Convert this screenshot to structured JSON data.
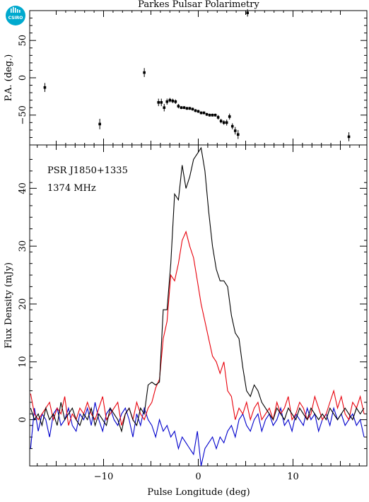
{
  "logo": {
    "text": "CSIRO",
    "color": "#00a9ce"
  },
  "chart_data": [
    {
      "type": "scatter",
      "title": "Parkes Pulsar Polarimetry",
      "xlabel": "",
      "ylabel": "P.A. (deg.)",
      "xlim": [
        -17.8,
        17.8
      ],
      "ylim": [
        -90,
        90
      ],
      "yticks": [
        50,
        0,
        -50
      ],
      "points": [
        {
          "x": -16.2,
          "y": -13,
          "err": 6
        },
        {
          "x": -10.4,
          "y": -62,
          "err": 7
        },
        {
          "x": -5.7,
          "y": 7,
          "err": 6
        },
        {
          "x": -4.2,
          "y": -33,
          "err": 5
        },
        {
          "x": -3.9,
          "y": -33,
          "err": 5
        },
        {
          "x": -3.6,
          "y": -40,
          "err": 5
        },
        {
          "x": -3.3,
          "y": -32,
          "err": 4
        },
        {
          "x": -3.0,
          "y": -30,
          "err": 3
        },
        {
          "x": -2.7,
          "y": -31,
          "err": 3
        },
        {
          "x": -2.4,
          "y": -32,
          "err": 3
        },
        {
          "x": -2.1,
          "y": -38,
          "err": 3
        },
        {
          "x": -1.8,
          "y": -40,
          "err": 2
        },
        {
          "x": -1.5,
          "y": -40,
          "err": 2
        },
        {
          "x": -1.2,
          "y": -41,
          "err": 2
        },
        {
          "x": -0.9,
          "y": -41,
          "err": 2
        },
        {
          "x": -0.6,
          "y": -42,
          "err": 2
        },
        {
          "x": -0.3,
          "y": -44,
          "err": 2
        },
        {
          "x": 0.0,
          "y": -45,
          "err": 2
        },
        {
          "x": 0.3,
          "y": -47,
          "err": 2
        },
        {
          "x": 0.6,
          "y": -47,
          "err": 2
        },
        {
          "x": 0.9,
          "y": -49,
          "err": 2
        },
        {
          "x": 1.2,
          "y": -50,
          "err": 2
        },
        {
          "x": 1.5,
          "y": -50,
          "err": 2
        },
        {
          "x": 1.8,
          "y": -50,
          "err": 2
        },
        {
          "x": 2.1,
          "y": -53,
          "err": 3
        },
        {
          "x": 2.4,
          "y": -58,
          "err": 3
        },
        {
          "x": 2.7,
          "y": -60,
          "err": 3
        },
        {
          "x": 3.0,
          "y": -60,
          "err": 4
        },
        {
          "x": 3.3,
          "y": -52,
          "err": 4
        },
        {
          "x": 3.6,
          "y": -65,
          "err": 4
        },
        {
          "x": 3.9,
          "y": -71,
          "err": 5
        },
        {
          "x": 4.2,
          "y": -76,
          "err": 6
        },
        {
          "x": 5.2,
          "y": 87,
          "err": 5
        },
        {
          "x": 15.9,
          "y": -79,
          "err": 6
        }
      ]
    },
    {
      "type": "line",
      "title": "",
      "xlabel": "Pulse Longitude (deg)",
      "ylabel": "Flux Density (mJy)",
      "xlim": [
        -17.8,
        17.8
      ],
      "ylim": [
        -8,
        47.5
      ],
      "xticks": [
        -10,
        0,
        10
      ],
      "yticks": [
        0,
        10,
        20,
        30,
        40
      ],
      "annotations": [
        "PSR J1850+1335",
        "1374 MHz"
      ],
      "series": [
        {
          "color": "#000000",
          "x": [
            -17.7,
            -17.3,
            -16.9,
            -16.5,
            -16.1,
            -15.7,
            -15.3,
            -14.9,
            -14.5,
            -14.1,
            -13.7,
            -13.3,
            -12.9,
            -12.5,
            -12.1,
            -11.7,
            -11.3,
            -10.9,
            -10.5,
            -10.1,
            -9.7,
            -9.3,
            -8.9,
            -8.5,
            -8.1,
            -7.7,
            -7.3,
            -6.9,
            -6.5,
            -6.1,
            -5.7,
            -5.3,
            -4.9,
            -4.5,
            -4.1,
            -3.7,
            -3.3,
            -2.9,
            -2.5,
            -2.1,
            -1.7,
            -1.3,
            -0.9,
            -0.5,
            -0.1,
            0.3,
            0.7,
            1.1,
            1.5,
            1.9,
            2.3,
            2.7,
            3.1,
            3.5,
            3.9,
            4.3,
            4.7,
            5.1,
            5.5,
            5.9,
            6.3,
            6.7,
            7.1,
            7.5,
            7.9,
            8.3,
            8.7,
            9.1,
            9.5,
            9.9,
            10.3,
            10.7,
            11.1,
            11.5,
            11.9,
            12.3,
            12.7,
            13.1,
            13.5,
            13.9,
            14.3,
            14.7,
            15.1,
            15.5,
            15.9,
            16.3,
            16.7,
            17.1,
            17.5
          ],
          "y": [
            2,
            0,
            1,
            -1,
            2,
            0,
            1,
            -1,
            3,
            0,
            1,
            2,
            0,
            -1,
            1,
            0,
            2,
            -1,
            1,
            0,
            -1,
            2,
            1,
            0,
            -2,
            1,
            2,
            0,
            -1,
            2,
            1,
            6,
            6.5,
            6,
            6.5,
            19,
            19,
            27,
            39,
            38,
            44,
            40,
            42,
            45,
            46,
            47,
            43,
            36,
            30,
            26,
            24,
            24,
            23,
            18,
            15,
            14,
            9,
            5,
            4,
            6,
            5,
            3,
            2,
            1,
            0,
            2,
            1,
            0,
            2,
            1,
            0,
            2,
            1,
            0,
            2,
            1,
            0,
            1,
            0,
            2,
            1,
            0,
            1,
            2,
            1,
            0,
            2,
            1,
            2
          ]
        },
        {
          "color": "#e8000b",
          "x": [
            -17.7,
            -17.3,
            -16.9,
            -16.5,
            -16.1,
            -15.7,
            -15.3,
            -14.9,
            -14.5,
            -14.1,
            -13.7,
            -13.3,
            -12.9,
            -12.5,
            -12.1,
            -11.7,
            -11.3,
            -10.9,
            -10.5,
            -10.1,
            -9.7,
            -9.3,
            -8.9,
            -8.5,
            -8.1,
            -7.7,
            -7.3,
            -6.9,
            -6.5,
            -6.1,
            -5.7,
            -5.3,
            -4.9,
            -4.5,
            -4.1,
            -3.7,
            -3.3,
            -2.9,
            -2.5,
            -2.1,
            -1.7,
            -1.3,
            -0.9,
            -0.5,
            -0.1,
            0.3,
            0.7,
            1.1,
            1.5,
            1.9,
            2.3,
            2.7,
            3.1,
            3.5,
            3.9,
            4.3,
            4.7,
            5.1,
            5.5,
            5.9,
            6.3,
            6.7,
            7.1,
            7.5,
            7.9,
            8.3,
            8.7,
            9.1,
            9.5,
            9.9,
            10.3,
            10.7,
            11.1,
            11.5,
            11.9,
            12.3,
            12.7,
            13.1,
            13.5,
            13.9,
            14.3,
            14.7,
            15.1,
            15.5,
            15.9,
            16.3,
            16.7,
            17.1,
            17.5
          ],
          "y": [
            4.5,
            1,
            0,
            1,
            2,
            3,
            0,
            2,
            1,
            4,
            -1,
            1,
            0,
            2,
            1,
            3,
            1,
            0,
            2,
            4,
            0,
            1,
            2,
            3,
            -1,
            1,
            2,
            0,
            3,
            1,
            0,
            2,
            3,
            5.5,
            7,
            14,
            17,
            25,
            24,
            27,
            31,
            32.5,
            30,
            28,
            24,
            20,
            17,
            14,
            11,
            10,
            8,
            10,
            5,
            4,
            0,
            2,
            1,
            3,
            0,
            2,
            3,
            0,
            1,
            2,
            0,
            3,
            1,
            2,
            4,
            0,
            1,
            3,
            2,
            0,
            1,
            4,
            2,
            0,
            1,
            3,
            5,
            2,
            4,
            1,
            0,
            3,
            2,
            4,
            1
          ]
        },
        {
          "color": "#0000cc",
          "x": [
            -17.7,
            -17.3,
            -16.9,
            -16.5,
            -16.1,
            -15.7,
            -15.3,
            -14.9,
            -14.5,
            -14.1,
            -13.7,
            -13.3,
            -12.9,
            -12.5,
            -12.1,
            -11.7,
            -11.3,
            -10.9,
            -10.5,
            -10.1,
            -9.7,
            -9.3,
            -8.9,
            -8.5,
            -8.1,
            -7.7,
            -7.3,
            -6.9,
            -6.5,
            -6.1,
            -5.7,
            -5.3,
            -4.9,
            -4.5,
            -4.1,
            -3.7,
            -3.3,
            -2.9,
            -2.5,
            -2.1,
            -1.7,
            -1.3,
            -0.9,
            -0.5,
            -0.1,
            0.3,
            0.7,
            1.1,
            1.5,
            1.9,
            2.3,
            2.7,
            3.1,
            3.5,
            3.9,
            4.3,
            4.7,
            5.1,
            5.5,
            5.9,
            6.3,
            6.7,
            7.1,
            7.5,
            7.9,
            8.3,
            8.7,
            9.1,
            9.5,
            9.9,
            10.3,
            10.7,
            11.1,
            11.5,
            11.9,
            12.3,
            12.7,
            13.1,
            13.5,
            13.9,
            14.3,
            14.7,
            15.1,
            15.5,
            15.9,
            16.3,
            16.7,
            17.1,
            17.5
          ],
          "y": [
            -5,
            2,
            -2,
            1,
            0,
            -3,
            1,
            2,
            -1,
            0,
            2,
            -1,
            -2,
            1,
            0,
            2,
            -1,
            3,
            0,
            -2,
            1,
            2,
            0,
            -1,
            1,
            2,
            0,
            -3,
            1,
            -1,
            2,
            0,
            -1,
            -3,
            0,
            -2,
            -1,
            -3,
            -2,
            -5,
            -3,
            -4,
            -5,
            -6,
            -2,
            -8,
            -5,
            -4,
            -3,
            -5,
            -3,
            -4,
            -2,
            -1,
            -3,
            0,
            1,
            -1,
            -2,
            0,
            1,
            -2,
            0,
            1,
            -1,
            0,
            2,
            -1,
            0,
            -2,
            1,
            0,
            -1,
            2,
            0,
            1,
            -2,
            0,
            1,
            -1,
            2,
            0,
            1,
            -1,
            0,
            1,
            -1,
            0,
            -3
          ]
        }
      ]
    }
  ]
}
